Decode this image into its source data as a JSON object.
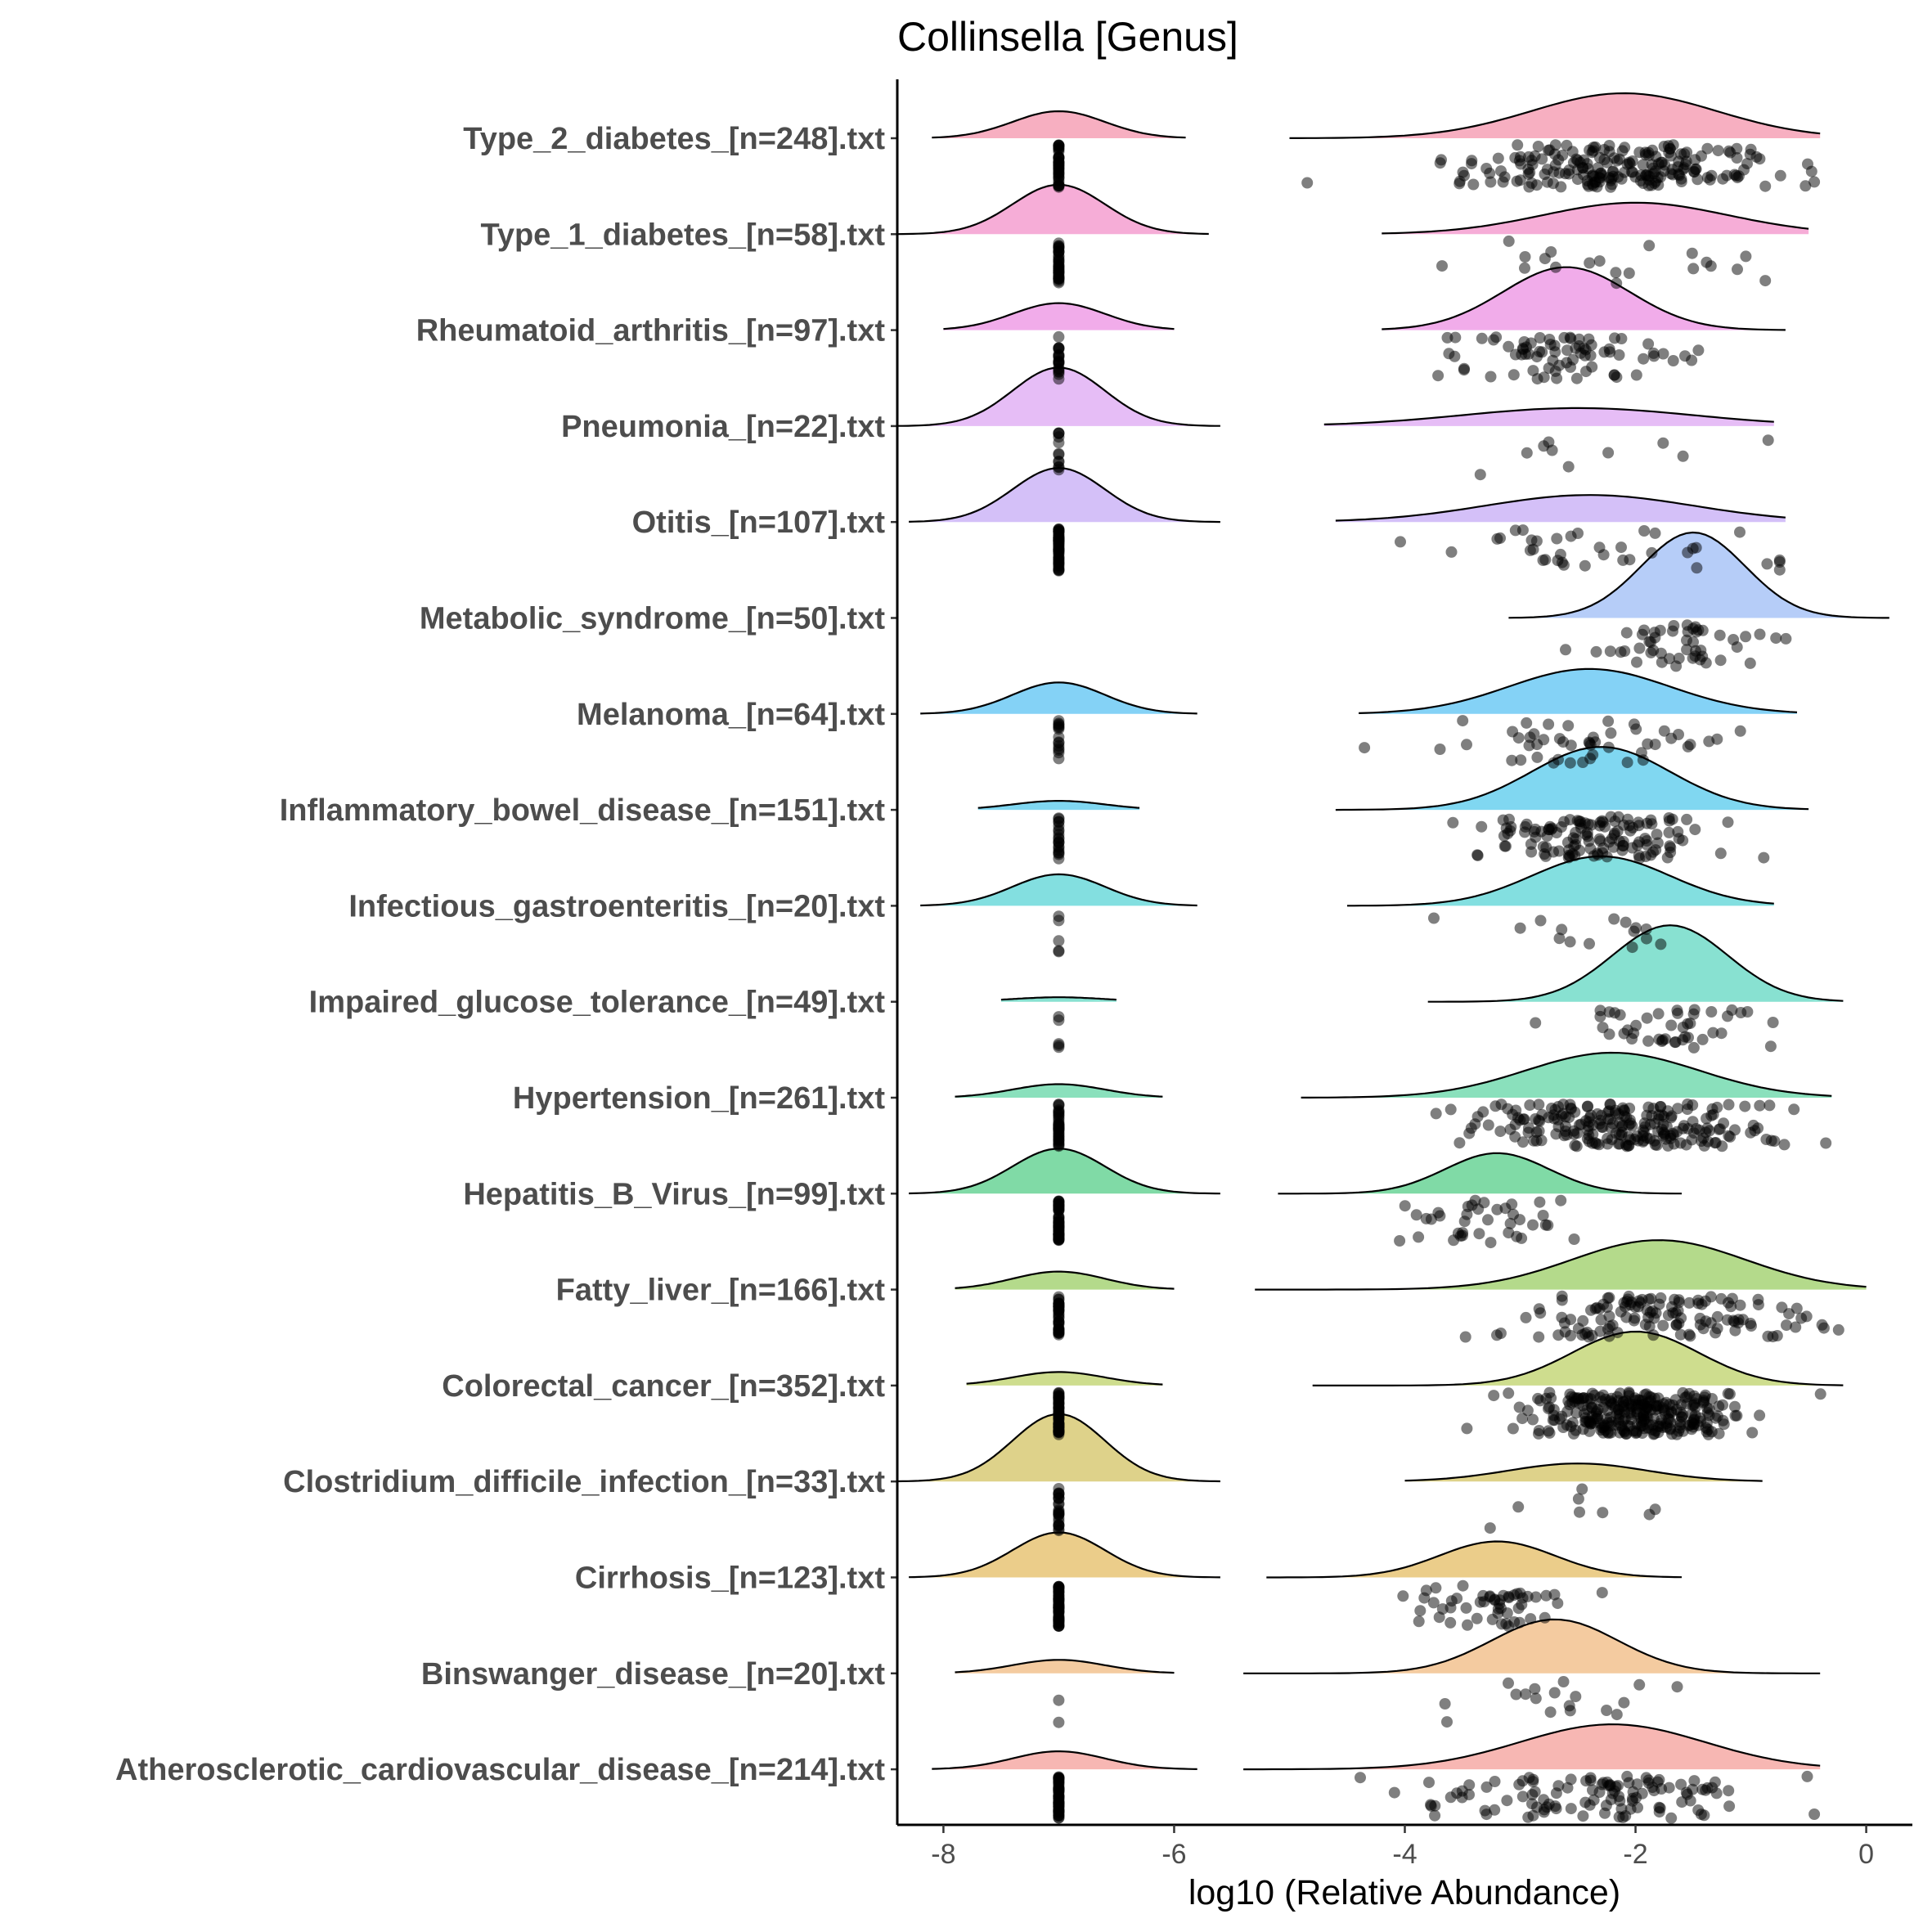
{
  "chart_data": {
    "type": "raincloud",
    "title": "Collinsella [Genus]",
    "xlabel": "log10 (Relative Abundance)",
    "ylabel": "",
    "xlim": [
      -8.4,
      0.4
    ],
    "xticks": [
      -8,
      -6,
      -4,
      -2,
      0
    ],
    "xtick_labels": [
      "-8",
      "-6",
      "-4",
      "-2",
      "0"
    ],
    "grid": false,
    "legend": "none",
    "zero_value": -7,
    "categories": [
      {
        "label": "Type_2_diabetes_[n=248].txt",
        "n": 248,
        "color": "#f6a1b6",
        "zero": {
          "count": 40,
          "sd": 0.4,
          "range": [
            -8.1,
            -5.9
          ],
          "h": 0.3
        },
        "pos": {
          "count": 208,
          "mean": -2.1,
          "sd": 0.8,
          "range": [
            -5.0,
            -0.4
          ],
          "h": 0.5
        }
      },
      {
        "label": "Type_1_diabetes_[n=58].txt",
        "n": 58,
        "color": "#f59fd0",
        "zero": {
          "count": 38,
          "sd": 0.4,
          "range": [
            -8.4,
            -5.7
          ],
          "h": 0.55
        },
        "pos": {
          "count": 20,
          "mean": -2.0,
          "sd": 0.8,
          "range": [
            -4.2,
            -0.5
          ],
          "h": 0.35
        }
      },
      {
        "label": "Rheumatoid_arthritis_[n=97].txt",
        "n": 97,
        "color": "#ef9ee6",
        "zero": {
          "count": 20,
          "sd": 0.4,
          "range": [
            -8.0,
            -6.0
          ],
          "h": 0.3
        },
        "pos": {
          "count": 77,
          "mean": -2.6,
          "sd": 0.55,
          "range": [
            -4.2,
            -0.7
          ],
          "h": 0.7
        }
      },
      {
        "label": "Pneumonia_[n=22].txt",
        "n": 22,
        "color": "#e2b1f5",
        "zero": {
          "count": 12,
          "sd": 0.4,
          "range": [
            -8.4,
            -5.6
          ],
          "h": 0.65
        },
        "pos": {
          "count": 10,
          "mean": -2.5,
          "sd": 1.0,
          "range": [
            -4.7,
            -0.8
          ],
          "h": 0.2
        }
      },
      {
        "label": "Otitis_[n=107].txt",
        "n": 107,
        "color": "#cdb5f7",
        "zero": {
          "count": 70,
          "sd": 0.4,
          "range": [
            -8.3,
            -5.6
          ],
          "h": 0.6
        },
        "pos": {
          "count": 37,
          "mean": -2.4,
          "sd": 0.9,
          "range": [
            -4.6,
            -0.7
          ],
          "h": 0.3
        }
      },
      {
        "label": "Metabolic_syndrome_[n=50].txt",
        "n": 50,
        "color": "#a9c4f7",
        "zero": null,
        "pos": {
          "count": 50,
          "mean": -1.5,
          "sd": 0.45,
          "range": [
            -3.1,
            0.2
          ],
          "h": 0.95
        }
      },
      {
        "label": "Melanoma_[n=64].txt",
        "n": 64,
        "color": "#6fcaf5",
        "zero": {
          "count": 15,
          "sd": 0.4,
          "range": [
            -8.2,
            -5.8
          ],
          "h": 0.35
        },
        "pos": {
          "count": 49,
          "mean": -2.4,
          "sd": 0.7,
          "range": [
            -4.4,
            -0.6
          ],
          "h": 0.5
        }
      },
      {
        "label": "Inflammatory_bowel_disease_[n=151].txt",
        "n": 151,
        "color": "#6ad0ef",
        "zero": {
          "count": 20,
          "sd": 0.4,
          "range": [
            -7.7,
            -6.3
          ],
          "h": 0.1
        },
        "pos": {
          "count": 131,
          "mean": -2.3,
          "sd": 0.6,
          "range": [
            -4.6,
            -0.5
          ],
          "h": 0.7
        }
      },
      {
        "label": "Infectious_gastroenteritis_[n=20].txt",
        "n": 20,
        "color": "#6dd9da",
        "zero": {
          "count": 5,
          "sd": 0.4,
          "range": [
            -8.2,
            -5.8
          ],
          "h": 0.35
        },
        "pos": {
          "count": 15,
          "mean": -2.3,
          "sd": 0.6,
          "range": [
            -4.5,
            -0.8
          ],
          "h": 0.55
        }
      },
      {
        "label": "Impaired_glucose_tolerance_[n=49].txt",
        "n": 49,
        "color": "#73dcc9",
        "zero": {
          "count": 5,
          "sd": 0.4,
          "range": [
            -7.5,
            -6.5
          ],
          "h": 0.05
        },
        "pos": {
          "count": 44,
          "mean": -1.7,
          "sd": 0.5,
          "range": [
            -3.8,
            -0.2
          ],
          "h": 0.85
        }
      },
      {
        "label": "Hypertension_[n=261].txt",
        "n": 261,
        "color": "#76dbb0",
        "zero": {
          "count": 40,
          "sd": 0.4,
          "range": [
            -7.9,
            -6.1
          ],
          "h": 0.15
        },
        "pos": {
          "count": 221,
          "mean": -2.2,
          "sd": 0.75,
          "range": [
            -4.9,
            -0.3
          ],
          "h": 0.5
        }
      },
      {
        "label": "Hepatitis_B_Virus_[n=99].txt",
        "n": 99,
        "color": "#6ad396",
        "zero": {
          "count": 60,
          "sd": 0.4,
          "range": [
            -8.3,
            -5.6
          ],
          "h": 0.5
        },
        "pos": {
          "count": 39,
          "mean": -3.2,
          "sd": 0.45,
          "range": [
            -5.1,
            -1.6
          ],
          "h": 0.45
        }
      },
      {
        "label": "Fatty_liver_[n=166].txt",
        "n": 166,
        "color": "#a7d477",
        "zero": {
          "count": 40,
          "sd": 0.4,
          "range": [
            -7.9,
            -6.0
          ],
          "h": 0.2
        },
        "pos": {
          "count": 126,
          "mean": -1.8,
          "sd": 0.75,
          "range": [
            -5.3,
            0.0
          ],
          "h": 0.55
        }
      },
      {
        "label": "Colorectal_cancer_[n=352].txt",
        "n": 352,
        "color": "#c5d77a",
        "zero": {
          "count": 60,
          "sd": 0.4,
          "range": [
            -7.8,
            -6.1
          ],
          "h": 0.15
        },
        "pos": {
          "count": 292,
          "mean": -2.0,
          "sd": 0.55,
          "range": [
            -4.8,
            -0.2
          ],
          "h": 0.6
        }
      },
      {
        "label": "Clostridium_difficile_infection_[n=33].txt",
        "n": 33,
        "color": "#d8ca75",
        "zero": {
          "count": 25,
          "sd": 0.4,
          "range": [
            -8.4,
            -5.6
          ],
          "h": 0.75
        },
        "pos": {
          "count": 8,
          "mean": -2.5,
          "sd": 0.6,
          "range": [
            -4.0,
            -0.9
          ],
          "h": 0.2
        }
      },
      {
        "label": "Cirrhosis_[n=123].txt",
        "n": 123,
        "color": "#e8c475",
        "zero": {
          "count": 70,
          "sd": 0.4,
          "range": [
            -8.3,
            -5.6
          ],
          "h": 0.5
        },
        "pos": {
          "count": 53,
          "mean": -3.2,
          "sd": 0.5,
          "range": [
            -5.2,
            -1.6
          ],
          "h": 0.4
        }
      },
      {
        "label": "Binswanger_disease_[n=20].txt",
        "n": 20,
        "color": "#f2c28f",
        "zero": {
          "count": 2,
          "sd": 0.4,
          "range": [
            -7.9,
            -6.0
          ],
          "h": 0.15
        },
        "pos": {
          "count": 18,
          "mean": -2.7,
          "sd": 0.55,
          "range": [
            -5.4,
            -0.4
          ],
          "h": 0.6
        }
      },
      {
        "label": "Atherosclerotic_cardiovascular_disease_[n=214].txt",
        "n": 214,
        "color": "#f6aaa6",
        "zero": {
          "count": 100,
          "sd": 0.4,
          "range": [
            -8.1,
            -5.8
          ],
          "h": 0.2
        },
        "pos": {
          "count": 114,
          "mean": -2.2,
          "sd": 0.8,
          "range": [
            -5.4,
            -0.4
          ],
          "h": 0.5
        }
      }
    ]
  }
}
